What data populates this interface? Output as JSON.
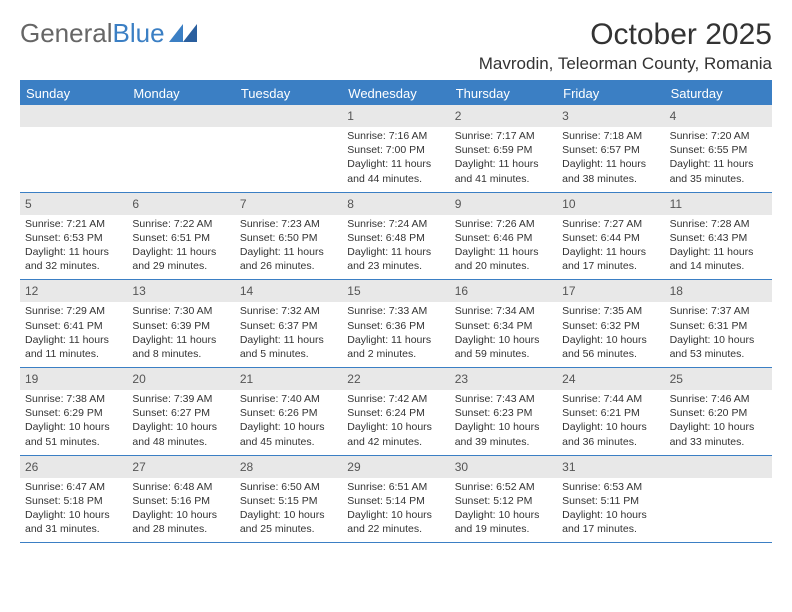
{
  "logo": {
    "text1": "General",
    "text2": "Blue"
  },
  "title": "October 2025",
  "location": "Mavrodin, Teleorman County, Romania",
  "day_names": [
    "Sunday",
    "Monday",
    "Tuesday",
    "Wednesday",
    "Thursday",
    "Friday",
    "Saturday"
  ],
  "colors": {
    "accent": "#3b7fc4",
    "header_bg": "#3b7fc4",
    "daynum_bg": "#e8e8e8",
    "text": "#333333"
  },
  "weeks": [
    [
      {
        "n": "",
        "sunrise": "",
        "sunset": "",
        "daylight": ""
      },
      {
        "n": "",
        "sunrise": "",
        "sunset": "",
        "daylight": ""
      },
      {
        "n": "",
        "sunrise": "",
        "sunset": "",
        "daylight": ""
      },
      {
        "n": "1",
        "sunrise": "Sunrise: 7:16 AM",
        "sunset": "Sunset: 7:00 PM",
        "daylight": "Daylight: 11 hours and 44 minutes."
      },
      {
        "n": "2",
        "sunrise": "Sunrise: 7:17 AM",
        "sunset": "Sunset: 6:59 PM",
        "daylight": "Daylight: 11 hours and 41 minutes."
      },
      {
        "n": "3",
        "sunrise": "Sunrise: 7:18 AM",
        "sunset": "Sunset: 6:57 PM",
        "daylight": "Daylight: 11 hours and 38 minutes."
      },
      {
        "n": "4",
        "sunrise": "Sunrise: 7:20 AM",
        "sunset": "Sunset: 6:55 PM",
        "daylight": "Daylight: 11 hours and 35 minutes."
      }
    ],
    [
      {
        "n": "5",
        "sunrise": "Sunrise: 7:21 AM",
        "sunset": "Sunset: 6:53 PM",
        "daylight": "Daylight: 11 hours and 32 minutes."
      },
      {
        "n": "6",
        "sunrise": "Sunrise: 7:22 AM",
        "sunset": "Sunset: 6:51 PM",
        "daylight": "Daylight: 11 hours and 29 minutes."
      },
      {
        "n": "7",
        "sunrise": "Sunrise: 7:23 AM",
        "sunset": "Sunset: 6:50 PM",
        "daylight": "Daylight: 11 hours and 26 minutes."
      },
      {
        "n": "8",
        "sunrise": "Sunrise: 7:24 AM",
        "sunset": "Sunset: 6:48 PM",
        "daylight": "Daylight: 11 hours and 23 minutes."
      },
      {
        "n": "9",
        "sunrise": "Sunrise: 7:26 AM",
        "sunset": "Sunset: 6:46 PM",
        "daylight": "Daylight: 11 hours and 20 minutes."
      },
      {
        "n": "10",
        "sunrise": "Sunrise: 7:27 AM",
        "sunset": "Sunset: 6:44 PM",
        "daylight": "Daylight: 11 hours and 17 minutes."
      },
      {
        "n": "11",
        "sunrise": "Sunrise: 7:28 AM",
        "sunset": "Sunset: 6:43 PM",
        "daylight": "Daylight: 11 hours and 14 minutes."
      }
    ],
    [
      {
        "n": "12",
        "sunrise": "Sunrise: 7:29 AM",
        "sunset": "Sunset: 6:41 PM",
        "daylight": "Daylight: 11 hours and 11 minutes."
      },
      {
        "n": "13",
        "sunrise": "Sunrise: 7:30 AM",
        "sunset": "Sunset: 6:39 PM",
        "daylight": "Daylight: 11 hours and 8 minutes."
      },
      {
        "n": "14",
        "sunrise": "Sunrise: 7:32 AM",
        "sunset": "Sunset: 6:37 PM",
        "daylight": "Daylight: 11 hours and 5 minutes."
      },
      {
        "n": "15",
        "sunrise": "Sunrise: 7:33 AM",
        "sunset": "Sunset: 6:36 PM",
        "daylight": "Daylight: 11 hours and 2 minutes."
      },
      {
        "n": "16",
        "sunrise": "Sunrise: 7:34 AM",
        "sunset": "Sunset: 6:34 PM",
        "daylight": "Daylight: 10 hours and 59 minutes."
      },
      {
        "n": "17",
        "sunrise": "Sunrise: 7:35 AM",
        "sunset": "Sunset: 6:32 PM",
        "daylight": "Daylight: 10 hours and 56 minutes."
      },
      {
        "n": "18",
        "sunrise": "Sunrise: 7:37 AM",
        "sunset": "Sunset: 6:31 PM",
        "daylight": "Daylight: 10 hours and 53 minutes."
      }
    ],
    [
      {
        "n": "19",
        "sunrise": "Sunrise: 7:38 AM",
        "sunset": "Sunset: 6:29 PM",
        "daylight": "Daylight: 10 hours and 51 minutes."
      },
      {
        "n": "20",
        "sunrise": "Sunrise: 7:39 AM",
        "sunset": "Sunset: 6:27 PM",
        "daylight": "Daylight: 10 hours and 48 minutes."
      },
      {
        "n": "21",
        "sunrise": "Sunrise: 7:40 AM",
        "sunset": "Sunset: 6:26 PM",
        "daylight": "Daylight: 10 hours and 45 minutes."
      },
      {
        "n": "22",
        "sunrise": "Sunrise: 7:42 AM",
        "sunset": "Sunset: 6:24 PM",
        "daylight": "Daylight: 10 hours and 42 minutes."
      },
      {
        "n": "23",
        "sunrise": "Sunrise: 7:43 AM",
        "sunset": "Sunset: 6:23 PM",
        "daylight": "Daylight: 10 hours and 39 minutes."
      },
      {
        "n": "24",
        "sunrise": "Sunrise: 7:44 AM",
        "sunset": "Sunset: 6:21 PM",
        "daylight": "Daylight: 10 hours and 36 minutes."
      },
      {
        "n": "25",
        "sunrise": "Sunrise: 7:46 AM",
        "sunset": "Sunset: 6:20 PM",
        "daylight": "Daylight: 10 hours and 33 minutes."
      }
    ],
    [
      {
        "n": "26",
        "sunrise": "Sunrise: 6:47 AM",
        "sunset": "Sunset: 5:18 PM",
        "daylight": "Daylight: 10 hours and 31 minutes."
      },
      {
        "n": "27",
        "sunrise": "Sunrise: 6:48 AM",
        "sunset": "Sunset: 5:16 PM",
        "daylight": "Daylight: 10 hours and 28 minutes."
      },
      {
        "n": "28",
        "sunrise": "Sunrise: 6:50 AM",
        "sunset": "Sunset: 5:15 PM",
        "daylight": "Daylight: 10 hours and 25 minutes."
      },
      {
        "n": "29",
        "sunrise": "Sunrise: 6:51 AM",
        "sunset": "Sunset: 5:14 PM",
        "daylight": "Daylight: 10 hours and 22 minutes."
      },
      {
        "n": "30",
        "sunrise": "Sunrise: 6:52 AM",
        "sunset": "Sunset: 5:12 PM",
        "daylight": "Daylight: 10 hours and 19 minutes."
      },
      {
        "n": "31",
        "sunrise": "Sunrise: 6:53 AM",
        "sunset": "Sunset: 5:11 PM",
        "daylight": "Daylight: 10 hours and 17 minutes."
      },
      {
        "n": "",
        "sunrise": "",
        "sunset": "",
        "daylight": ""
      }
    ]
  ]
}
